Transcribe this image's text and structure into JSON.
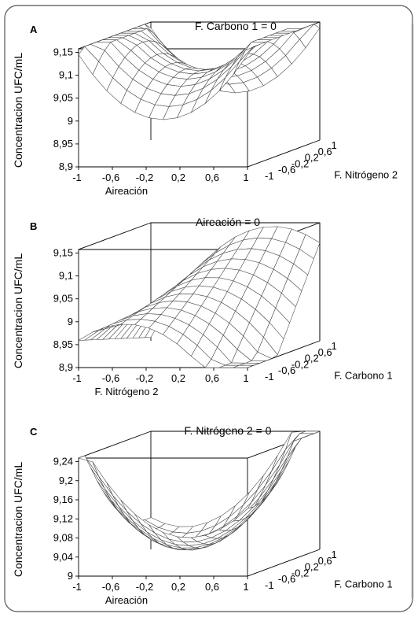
{
  "chart_data": [
    {
      "type": "surface",
      "panel": "A",
      "title": "F. Carbono 1 = 0",
      "x_axis": {
        "label": "Aireación",
        "ticks": [
          "-1",
          "-0,6",
          "-0,2",
          "0,2",
          "0,6",
          "1"
        ],
        "range": [
          -1,
          1
        ]
      },
      "y_axis": {
        "label": "F. Nitrógeno 2",
        "ticks": [
          "-1",
          "-0,6",
          "-0,2",
          "0,2",
          "0,6",
          "1"
        ],
        "range": [
          -1,
          1
        ]
      },
      "z_axis": {
        "label": "Concentracion UFC/mL",
        "ticks": [
          "8,9",
          "8,95",
          "9",
          "9,05",
          "9,1",
          "9,15"
        ],
        "range": [
          8.9,
          9.15
        ]
      },
      "shape": "saddle: curves up toward the ends of Aireación, bows down with F. Nitrógeno 2"
    },
    {
      "type": "surface",
      "panel": "B",
      "title": "Aireación = 0",
      "x_axis": {
        "label": "F. Nitrógeno 2",
        "ticks": [
          "-1",
          "-0,6",
          "-0,2",
          "0,2",
          "0,6",
          "1"
        ],
        "range": [
          -1,
          1
        ]
      },
      "y_axis": {
        "label": "F. Carbono 1",
        "ticks": [
          "-1",
          "-0,6",
          "-0,2",
          "0,2",
          "0,6",
          "1"
        ],
        "range": [
          -1,
          1
        ]
      },
      "z_axis": {
        "label": "Concentracion UFC/mL",
        "ticks": [
          "8,9",
          "8,95",
          "9",
          "9,05",
          "9,1",
          "9,15"
        ],
        "range": [
          8.9,
          9.15
        ]
      },
      "shape": "saddle: peaks near centre of F. Nitrógeno 2, rises toward the far F. Carbono 1 corner"
    },
    {
      "type": "surface",
      "panel": "C",
      "title": "F. Nitrógeno 2 = 0",
      "x_axis": {
        "label": "Aireación",
        "ticks": [
          "-1",
          "-0,6",
          "-0,2",
          "0,2",
          "0,6",
          "1"
        ],
        "range": [
          -1,
          1
        ]
      },
      "y_axis": {
        "label": "F. Carbono 1",
        "ticks": [
          "-1",
          "-0,6",
          "-0,2",
          "0,2",
          "0,6",
          "1"
        ],
        "range": [
          -1,
          1
        ]
      },
      "z_axis": {
        "label": "Concentracion UFC/mL",
        "ticks": [
          "9",
          "9,04",
          "9,08",
          "9,12",
          "9,16",
          "9,2",
          "9,24"
        ],
        "range": [
          9.0,
          9.26
        ]
      },
      "shape": "bowl: minimum near the centre, highest at the far right corner"
    }
  ]
}
